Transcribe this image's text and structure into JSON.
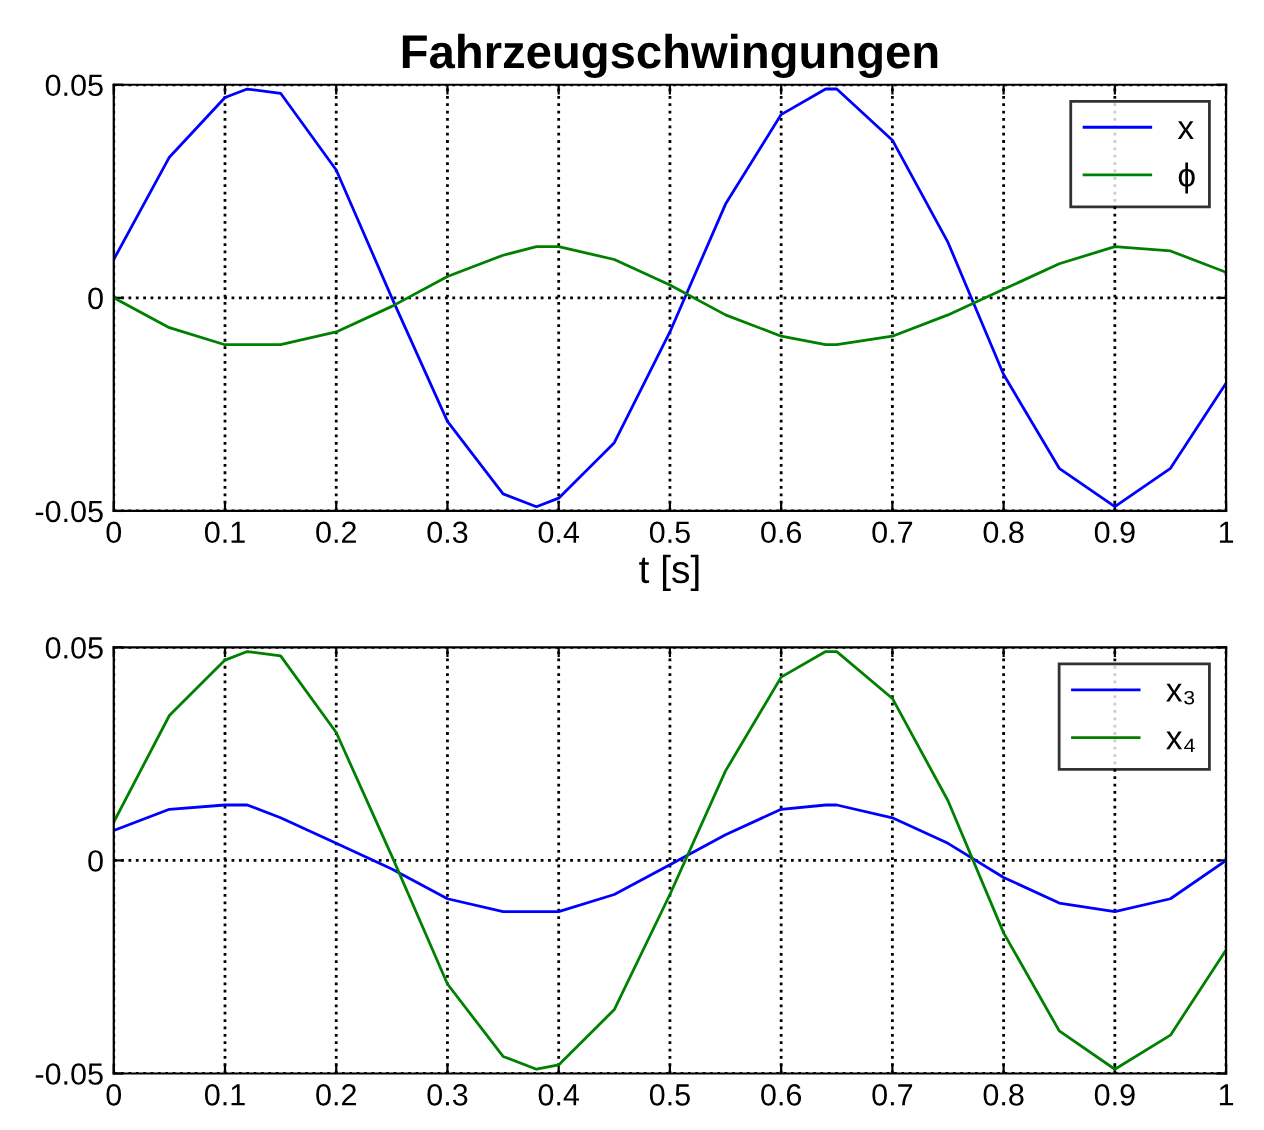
{
  "chart_data": [
    {
      "type": "line",
      "title": "Fahrzeugschwingungen",
      "xlabel": "t [s]",
      "x": [
        0,
        0.05,
        0.1,
        0.12,
        0.15,
        0.2,
        0.25,
        0.3,
        0.35,
        0.38,
        0.4,
        0.45,
        0.5,
        0.55,
        0.6,
        0.64,
        0.65,
        0.7,
        0.75,
        0.8,
        0.85,
        0.9,
        0.95,
        1.0
      ],
      "series": [
        {
          "name": "x",
          "color": "#0000ff",
          "values": [
            0.009,
            0.033,
            0.047,
            0.049,
            0.048,
            0.03,
            0.0,
            -0.029,
            -0.046,
            -0.049,
            -0.047,
            -0.034,
            -0.008,
            0.022,
            0.043,
            0.049,
            0.049,
            0.037,
            0.013,
            -0.018,
            -0.04,
            -0.049,
            -0.04,
            -0.02
          ]
        },
        {
          "name": "ϕ",
          "color": "#008000",
          "values": [
            0.0,
            -0.007,
            -0.011,
            -0.011,
            -0.011,
            -0.008,
            -0.002,
            0.005,
            0.01,
            0.012,
            0.012,
            0.009,
            0.003,
            -0.004,
            -0.009,
            -0.011,
            -0.011,
            -0.009,
            -0.004,
            0.002,
            0.008,
            0.012,
            0.011,
            0.006
          ]
        }
      ],
      "xlim": [
        0,
        1
      ],
      "xticks": [
        0,
        0.1,
        0.2,
        0.3,
        0.4,
        0.5,
        0.6,
        0.7,
        0.8,
        0.9,
        1
      ],
      "ylim": [
        -0.05,
        0.05
      ],
      "yticks": [
        -0.05,
        0,
        0.05
      ],
      "grid": true,
      "legend": "top right"
    },
    {
      "type": "line",
      "x": [
        0,
        0.05,
        0.1,
        0.12,
        0.15,
        0.2,
        0.25,
        0.3,
        0.35,
        0.38,
        0.4,
        0.45,
        0.5,
        0.55,
        0.6,
        0.64,
        0.65,
        0.7,
        0.75,
        0.8,
        0.85,
        0.9,
        0.95,
        1.0
      ],
      "series": [
        {
          "name": "x₃",
          "color": "#0000ff",
          "values": [
            0.007,
            0.012,
            0.013,
            0.013,
            0.01,
            0.004,
            -0.002,
            -0.009,
            -0.012,
            -0.012,
            -0.012,
            -0.008,
            -0.001,
            0.006,
            0.012,
            0.013,
            0.013,
            0.01,
            0.004,
            -0.004,
            -0.01,
            -0.012,
            -0.009,
            0.0
          ]
        },
        {
          "name": "x₄",
          "color": "#008000",
          "values": [
            0.009,
            0.034,
            0.047,
            0.049,
            0.048,
            0.03,
            0.001,
            -0.029,
            -0.046,
            -0.049,
            -0.048,
            -0.035,
            -0.008,
            0.021,
            0.043,
            0.049,
            0.049,
            0.038,
            0.014,
            -0.017,
            -0.04,
            -0.049,
            -0.041,
            -0.021
          ]
        }
      ],
      "xlim": [
        0,
        1
      ],
      "xticks": [
        0,
        0.1,
        0.2,
        0.3,
        0.4,
        0.5,
        0.6,
        0.7,
        0.8,
        0.9,
        1
      ],
      "ylim": [
        -0.05,
        0.05
      ],
      "yticks": [
        -0.05,
        0,
        0.05
      ],
      "grid": true,
      "legend": "top right"
    }
  ]
}
